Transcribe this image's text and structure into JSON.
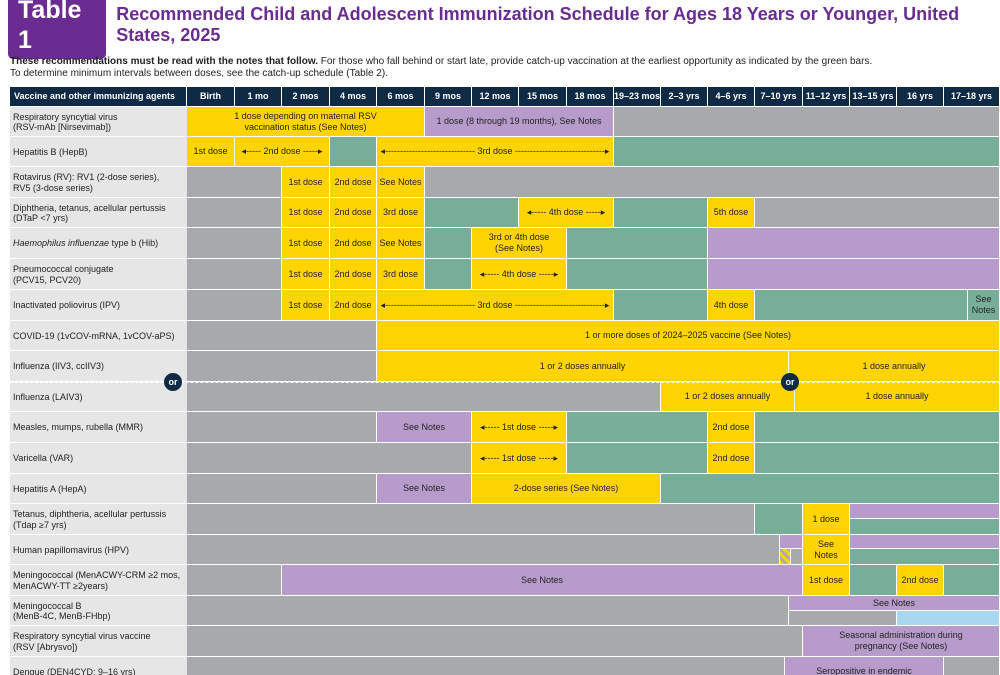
{
  "header": {
    "badge": "Table 1",
    "title": "Recommended Child and Adolescent Immunization Schedule for Ages 18 Years or Younger, United States, 2025"
  },
  "intro": {
    "bold": "These recommendations must be read with the notes that follow.",
    "text1": " For those who fall behind or start late, provide catch-up vaccination at the earliest opportunity as indicated by the green bars.",
    "text2": "To determine minimum intervals between doses, see the catch-up schedule (Table 2)."
  },
  "table": {
    "vaccine_header": "Vaccine and other immunizing agents",
    "ages": [
      "Birth",
      "1 mo",
      "2 mos",
      "4 mos",
      "6 mos",
      "9 mos",
      "12 mos",
      "15 mos",
      "18 mos",
      "19–23 mos",
      "2–3 yrs",
      "4–6 yrs",
      "7–10 yrs",
      "11–12 yrs",
      "13–15 yrs",
      "16 yrs",
      "17–18 yrs"
    ],
    "or_label": "or",
    "rows": [
      {
        "line1": "Respiratory syncytial virus",
        "line2": "(RSV-mAb [Nirsevimab])"
      },
      {
        "line1": "Hepatitis B (HepB)",
        "line2": ""
      },
      {
        "line1": "Rotavirus (RV): RV1 (2-dose series),",
        "line2": "RV5 (3-dose series)"
      },
      {
        "line1": "Diphtheria, tetanus, acellular pertussis",
        "line2": "(DTaP <7 yrs)"
      },
      {
        "line1": "Haemophilus influenzae",
        "line1b": " type b (Hib)",
        "line2": ""
      },
      {
        "line1": "Pneumococcal conjugate",
        "line2": "(PCV15, PCV20)"
      },
      {
        "line1": "Inactivated poliovirus (IPV)",
        "line2": ""
      },
      {
        "line1": "COVID-19 (1vCOV-mRNA, 1vCOV-aPS)",
        "line2": ""
      },
      {
        "line1": "Influenza (IIV3, ccIIV3)",
        "line2": ""
      },
      {
        "line1": "Influenza (LAIV3)",
        "line2": ""
      },
      {
        "line1": "Measles, mumps, rubella (MMR)",
        "line2": ""
      },
      {
        "line1": "Varicella (VAR)",
        "line2": ""
      },
      {
        "line1": "Hepatitis A (HepA)",
        "line2": ""
      },
      {
        "line1": "Tetanus, diphtheria, acellular pertussis",
        "line2": "(Tdap ≥7 yrs)"
      },
      {
        "line1": "Human papillomavirus (HPV)",
        "line2": ""
      },
      {
        "line1": "Meningococcal (MenACWY-CRM ≥2 mos,",
        "line2": "MenACWY-TT ≥2years)"
      },
      {
        "line1": "Meningococcal B",
        "line2": "(MenB-4C, MenB-FHbp)"
      },
      {
        "line1": "Respiratory syncytial virus vaccine",
        "line2": "(RSV [Abrysvo])"
      },
      {
        "line1": "Dengue (DEN4CYD; 9–16 yrs)",
        "line2": ""
      }
    ],
    "texts": {
      "rsv_mab": "1 dose depending on maternal RSV vaccination status (See Notes)",
      "rsv_mab2": "1 dose (8 through 19 months), See Notes",
      "first_dose": "1st dose",
      "second_dose_arrow": "◂----- 2nd dose -----▸",
      "third_dose_arrow": "◂------------------------------ 3rd dose ------------------------------▸",
      "second_dose": "2nd dose",
      "third_dose": "3rd dose",
      "see_notes": "See Notes",
      "fourth_dose_arrow": "◂----- 4th dose -----▸",
      "fifth_dose": "5th dose",
      "hib_34": "3rd or 4th dose (See Notes)",
      "pcv_4th": "◂----- 4th dose -----▸",
      "ipv_3rd": "◂------------------------------ 3rd dose ------------------------------▸",
      "fourth_dose": "4th dose",
      "covid": "1 or more doses of 2024–2025 vaccine (See Notes)",
      "flu_annual": "1 or 2 doses annually",
      "flu_one": "1 dose annually",
      "laiv_12": "1 or 2 doses annually",
      "first_dose_arrow": "◂----- 1st dose -----▸",
      "hepa_series": "2-dose series (See Notes)",
      "one_dose": "1 dose",
      "menb_notes": "See Notes",
      "rsv_preg": "Seasonal administration during pregnancy (See Notes)",
      "dengue": "Seropositive in endemic"
    }
  }
}
